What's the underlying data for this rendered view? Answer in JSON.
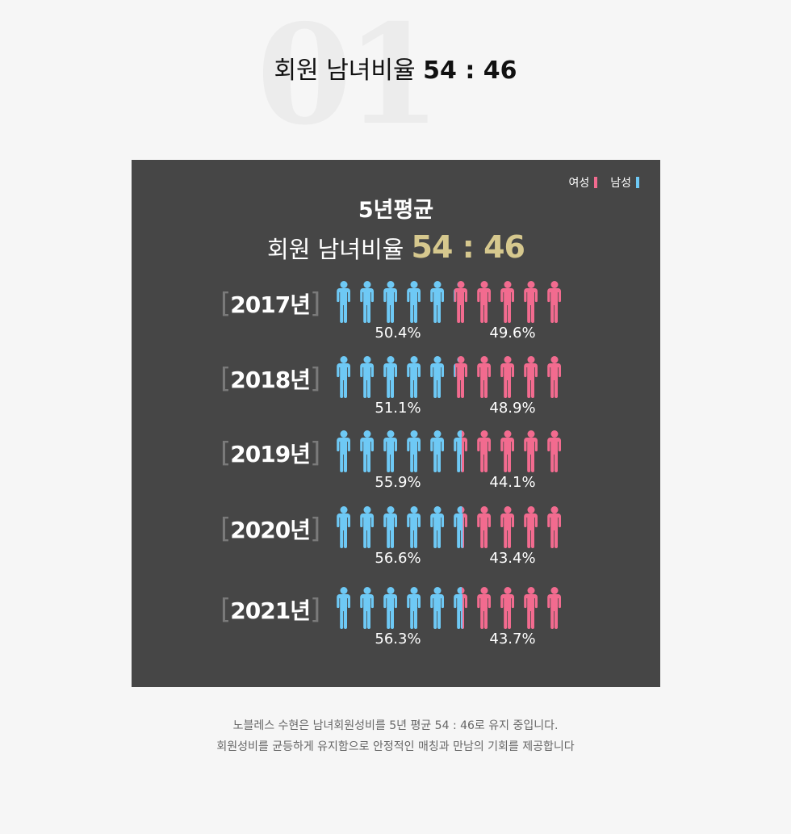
{
  "header": {
    "bg_number": "01",
    "title": "회원 남녀비율",
    "ratio": "54 : 46"
  },
  "panel": {
    "legend": [
      {
        "label": "여성",
        "color": "#f26b8f"
      },
      {
        "label": "남성",
        "color": "#6ec9f5"
      }
    ],
    "subtitle": "5년평균",
    "title": "회원 남녀비율",
    "ratio": "54 : 46"
  },
  "colors": {
    "male": "#6ec9f5",
    "female": "#f26b8f",
    "panel_bg": "#464646",
    "accent": "#d6c88e"
  },
  "chart_data": {
    "type": "bar",
    "title": "5년평균 회원 남녀비율 54 : 46",
    "categories": [
      "2017년",
      "2018년",
      "2019년",
      "2020년",
      "2021년"
    ],
    "series": [
      {
        "name": "남성",
        "values": [
          50.4,
          51.1,
          55.9,
          56.6,
          56.3
        ]
      },
      {
        "name": "여성",
        "values": [
          49.6,
          48.9,
          44.1,
          43.4,
          43.7
        ]
      }
    ],
    "labels": [
      {
        "male": "50.4%",
        "female": "49.6%"
      },
      {
        "male": "51.1%",
        "female": "48.9%"
      },
      {
        "male": "55.9%",
        "female": "44.1%"
      },
      {
        "male": "56.6%",
        "female": "43.4%"
      },
      {
        "male": "56.3%",
        "female": "43.7%"
      }
    ],
    "icons_per_row": 10,
    "stacked": true,
    "ylim": [
      0,
      100
    ]
  },
  "footer": {
    "line1": "노블레스 수현은 남녀회원성비를 5년 평균 54 : 46로 유지 중입니다.",
    "line2": "회원성비를 균등하게 유지함으로 안정적인 매칭과 만남의 기회를 제공합니다"
  }
}
